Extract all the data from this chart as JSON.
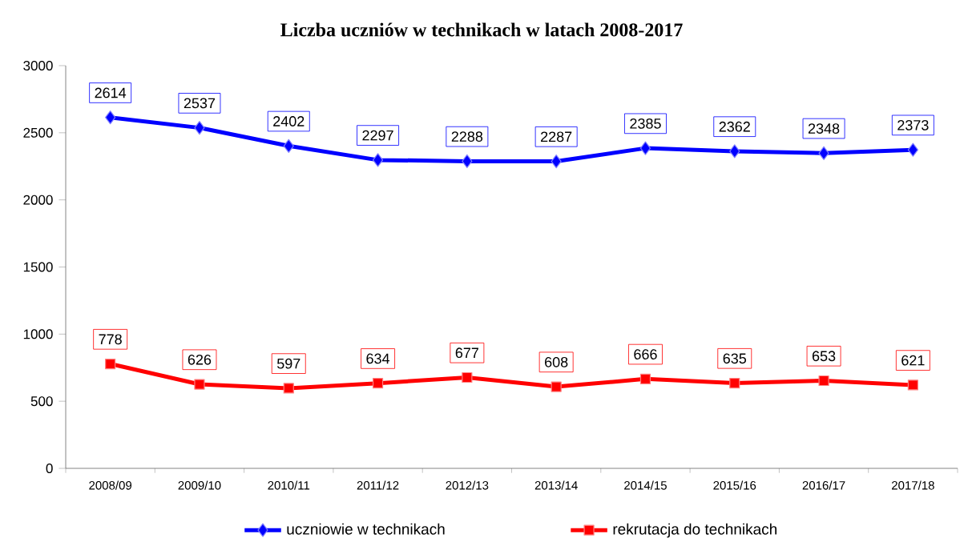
{
  "chart_data": {
    "type": "line",
    "title": "Liczba uczniów w technikach w latach 2008-2017",
    "categories": [
      "2008/09",
      "2009/10",
      "2010/11",
      "2011/12",
      "2012/13",
      "2013/14",
      "2014/15",
      "2015/16",
      "2016/17",
      "2017/18"
    ],
    "series": [
      {
        "name": "uczniowie w technikach",
        "color": "#0000ff",
        "marker": "diamond",
        "values": [
          2614,
          2537,
          2402,
          2297,
          2288,
          2287,
          2385,
          2362,
          2348,
          2373
        ]
      },
      {
        "name": "rekrutacja do technikach",
        "color": "#ff0000",
        "marker": "square",
        "values": [
          778,
          626,
          597,
          634,
          677,
          608,
          666,
          635,
          653,
          621
        ]
      }
    ],
    "ylim": [
      0,
      3000
    ],
    "yticks": [
      0,
      500,
      1000,
      1500,
      2000,
      2500,
      3000
    ],
    "data_labels": true,
    "legend": "bottom",
    "line_style": "solid"
  }
}
